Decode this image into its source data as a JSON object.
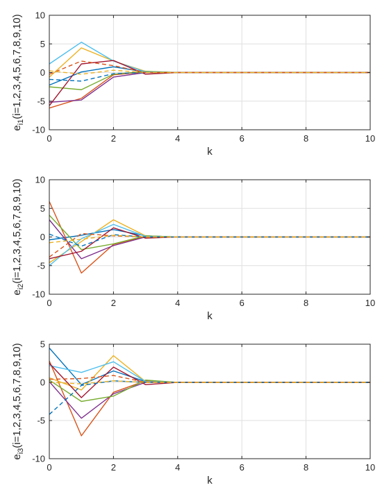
{
  "colors": {
    "series": [
      "#0072BD",
      "#D95319",
      "#EDB120",
      "#7E2F8E",
      "#77AC30",
      "#4DBEEE",
      "#A2142F"
    ],
    "grid": "#dfdfdf",
    "axis": "#262626"
  },
  "chart_data": [
    {
      "type": "line",
      "xlabel": "k",
      "ylabel_main": "e",
      "ylabel_sub": "i1",
      "ylabel_rest": "(i=1,2,3,4,5,6,7,8,9,10)",
      "xlim": [
        0,
        10
      ],
      "ylim": [
        -10,
        10
      ],
      "xticks": [
        "0",
        "2",
        "4",
        "6",
        "8",
        "10"
      ],
      "yticks": [
        "-10",
        "-5",
        "0",
        "5",
        "10"
      ],
      "grid": true,
      "x": [
        0,
        1,
        2,
        3,
        4,
        5,
        6,
        7,
        8,
        9,
        10
      ],
      "series": [
        {
          "color": "#0072BD",
          "dashed": false,
          "values": [
            -2.2,
            0.1,
            1.0,
            0.1,
            0,
            0,
            0,
            0,
            0,
            0,
            0
          ]
        },
        {
          "color": "#D95319",
          "dashed": false,
          "values": [
            -6.2,
            -4.5,
            -0.4,
            0.1,
            0,
            0,
            0,
            0,
            0,
            0,
            0
          ]
        },
        {
          "color": "#EDB120",
          "dashed": false,
          "values": [
            -0.8,
            4.3,
            2.0,
            0.2,
            0,
            0,
            0,
            0,
            0,
            0,
            0
          ]
        },
        {
          "color": "#7E2F8E",
          "dashed": false,
          "values": [
            -5.2,
            -4.8,
            -0.8,
            0,
            0,
            0,
            0,
            0,
            0,
            0,
            0
          ]
        },
        {
          "color": "#77AC30",
          "dashed": false,
          "values": [
            -2.5,
            -3.0,
            -0.3,
            0.2,
            0,
            0,
            0,
            0,
            0,
            0,
            0
          ]
        },
        {
          "color": "#4DBEEE",
          "dashed": false,
          "values": [
            1.5,
            5.3,
            2.0,
            0.1,
            0,
            0,
            0,
            0,
            0,
            0,
            0
          ]
        },
        {
          "color": "#A2142F",
          "dashed": false,
          "values": [
            -5.8,
            1.5,
            2.1,
            -0.3,
            0,
            0,
            0,
            0,
            0,
            0,
            0
          ]
        },
        {
          "color": "#0072BD",
          "dashed": true,
          "values": [
            -1.2,
            -1.5,
            -0.2,
            0,
            0,
            0,
            0,
            0,
            0,
            0,
            0
          ]
        },
        {
          "color": "#D95319",
          "dashed": true,
          "values": [
            -0.3,
            2.0,
            1.2,
            0,
            0,
            0,
            0,
            0,
            0,
            0,
            0
          ]
        },
        {
          "color": "#EDB120",
          "dashed": true,
          "values": [
            0.3,
            -0.3,
            0.4,
            0,
            0,
            0,
            0,
            0,
            0,
            0,
            0
          ]
        }
      ]
    },
    {
      "type": "line",
      "xlabel": "k",
      "ylabel_main": "e",
      "ylabel_sub": "i2",
      "ylabel_rest": "(i=1,2,3,4,5,6,7,8,9,10)",
      "xlim": [
        0,
        10
      ],
      "ylim": [
        -10,
        10
      ],
      "xticks": [
        "0",
        "2",
        "4",
        "6",
        "8",
        "10"
      ],
      "yticks": [
        "-10",
        "-5",
        "0",
        "5",
        "10"
      ],
      "grid": true,
      "x": [
        0,
        1,
        2,
        3,
        4,
        5,
        6,
        7,
        8,
        9,
        10
      ],
      "series": [
        {
          "color": "#0072BD",
          "dashed": false,
          "values": [
            -0.5,
            0.3,
            1.3,
            0.2,
            0,
            0,
            0,
            0,
            0,
            0,
            0
          ]
        },
        {
          "color": "#D95319",
          "dashed": false,
          "values": [
            6.2,
            -6.3,
            -1.3,
            0.1,
            0,
            0,
            0,
            0,
            0,
            0,
            0
          ]
        },
        {
          "color": "#EDB120",
          "dashed": false,
          "values": [
            -4.5,
            -0.8,
            3.0,
            0.2,
            0,
            0,
            0,
            0,
            0,
            0,
            0
          ]
        },
        {
          "color": "#7E2F8E",
          "dashed": false,
          "values": [
            3.0,
            -3.8,
            -1.5,
            0,
            0,
            0,
            0,
            0,
            0,
            0,
            0
          ]
        },
        {
          "color": "#77AC30",
          "dashed": false,
          "values": [
            3.8,
            -2.2,
            -1.2,
            0.2,
            0,
            0,
            0,
            0,
            0,
            0,
            0
          ]
        },
        {
          "color": "#4DBEEE",
          "dashed": false,
          "values": [
            -5.0,
            -0.3,
            2.2,
            0.1,
            0,
            0,
            0,
            0,
            0,
            0,
            0
          ]
        },
        {
          "color": "#A2142F",
          "dashed": false,
          "values": [
            -3.8,
            -2.5,
            1.6,
            -0.2,
            0,
            0,
            0,
            0,
            0,
            0,
            0
          ]
        },
        {
          "color": "#0072BD",
          "dashed": true,
          "values": [
            0.5,
            -1.6,
            0.4,
            0,
            0,
            0,
            0,
            0,
            0,
            0,
            0
          ]
        },
        {
          "color": "#D95319",
          "dashed": true,
          "values": [
            -3.5,
            0.6,
            0.2,
            0,
            0,
            0,
            0,
            0,
            0,
            0,
            0
          ]
        },
        {
          "color": "#EDB120",
          "dashed": true,
          "values": [
            -1.0,
            -0.4,
            0.3,
            0,
            0,
            0,
            0,
            0,
            0,
            0,
            0
          ]
        }
      ]
    },
    {
      "type": "line",
      "xlabel": "k",
      "ylabel_main": "e",
      "ylabel_sub": "i3",
      "ylabel_rest": "(i=1,2,3,4,5,6,7,8,9,10)",
      "xlim": [
        0,
        10
      ],
      "ylim": [
        -10,
        5
      ],
      "xticks": [
        "0",
        "2",
        "4",
        "6",
        "8",
        "10"
      ],
      "yticks": [
        "-10",
        "-5",
        "0",
        "5"
      ],
      "grid": true,
      "x": [
        0,
        1,
        2,
        3,
        4,
        5,
        6,
        7,
        8,
        9,
        10
      ],
      "series": [
        {
          "color": "#0072BD",
          "dashed": false,
          "values": [
            4.5,
            -0.3,
            1.5,
            0.1,
            0,
            0,
            0,
            0,
            0,
            0,
            0
          ]
        },
        {
          "color": "#D95319",
          "dashed": false,
          "values": [
            2.8,
            -7.0,
            -1.3,
            0.2,
            0,
            0,
            0,
            0,
            0,
            0,
            0
          ]
        },
        {
          "color": "#EDB120",
          "dashed": false,
          "values": [
            0.6,
            -1.0,
            3.5,
            0.1,
            0,
            0,
            0,
            0,
            0,
            0,
            0
          ]
        },
        {
          "color": "#7E2F8E",
          "dashed": false,
          "values": [
            0.1,
            -4.7,
            -1.5,
            0,
            0,
            0,
            0,
            0,
            0,
            0,
            0
          ]
        },
        {
          "color": "#77AC30",
          "dashed": false,
          "values": [
            0.3,
            -2.5,
            -1.8,
            0.3,
            0,
            0,
            0,
            0,
            0,
            0,
            0
          ]
        },
        {
          "color": "#4DBEEE",
          "dashed": false,
          "values": [
            2.2,
            1.3,
            2.7,
            0.1,
            0,
            0,
            0,
            0,
            0,
            0,
            0
          ]
        },
        {
          "color": "#A2142F",
          "dashed": false,
          "values": [
            2.5,
            -2.0,
            2.0,
            -0.3,
            0,
            0,
            0,
            0,
            0,
            0,
            0
          ]
        },
        {
          "color": "#0072BD",
          "dashed": true,
          "values": [
            -4.2,
            -0.4,
            0.2,
            0,
            0,
            0,
            0,
            0,
            0,
            0,
            0
          ]
        },
        {
          "color": "#D95319",
          "dashed": true,
          "values": [
            0.4,
            0.5,
            0.9,
            0,
            0,
            0,
            0,
            0,
            0,
            0,
            0
          ]
        },
        {
          "color": "#EDB120",
          "dashed": true,
          "values": [
            0.0,
            -0.2,
            0.2,
            0,
            0,
            0,
            0,
            0,
            0,
            0,
            0
          ]
        }
      ]
    }
  ]
}
